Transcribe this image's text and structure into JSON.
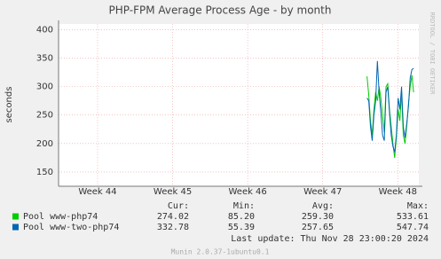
{
  "chart_data": {
    "type": "line",
    "title": "PHP-FPM Average Process Age - by month",
    "ylabel": "seconds",
    "side_text": "RRDTOOL / TOBI OETIKER",
    "xlim": [
      43.48,
      48.28
    ],
    "xticks": [
      {
        "value": 44,
        "label": "Week 44"
      },
      {
        "value": 45,
        "label": "Week 45"
      },
      {
        "value": 46,
        "label": "Week 46"
      },
      {
        "value": 47,
        "label": "Week 47"
      },
      {
        "value": 48,
        "label": "Week 48"
      }
    ],
    "ylim": [
      125,
      410
    ],
    "yticks": [
      150,
      200,
      250,
      300,
      350,
      400
    ],
    "grid": true,
    "x": [
      47.59,
      47.613,
      47.636,
      47.659,
      47.682,
      47.705,
      47.728,
      47.751,
      47.774,
      47.797,
      47.82,
      47.843,
      47.866,
      47.889,
      47.912,
      47.935,
      47.958,
      47.981,
      48.004,
      48.027,
      48.05,
      48.073,
      48.096,
      48.119,
      48.142,
      48.165,
      48.188,
      48.211
    ],
    "stat_headers": [
      "Cur:",
      "Min:",
      "Avg:",
      "Max:"
    ],
    "series": [
      {
        "name": "Pool www-php74",
        "color": "#00cc00",
        "values": [
          318,
          285,
          240,
          215,
          260,
          290,
          275,
          300,
          280,
          250,
          220,
          300,
          305,
          260,
          230,
          200,
          175,
          210,
          260,
          240,
          290,
          215,
          200,
          230,
          270,
          300,
          320,
          290
        ],
        "stats": [
          "274.02",
          "85.20",
          "259.30",
          "533.61"
        ]
      },
      {
        "name": "Pool www-two-php74",
        "color": "#0066b3",
        "values": [
          280,
          275,
          230,
          205,
          250,
          275,
          345,
          290,
          255,
          215,
          205,
          290,
          300,
          255,
          215,
          195,
          185,
          215,
          280,
          260,
          300,
          230,
          210,
          235,
          265,
          315,
          330,
          332
        ],
        "stats": [
          "332.78",
          "55.39",
          "257.65",
          "547.74"
        ]
      }
    ],
    "last_update": "Last update: Thu Nov 28 23:00:20 2024",
    "footer": "Munin 2.0.37-1ubuntu0.1"
  }
}
